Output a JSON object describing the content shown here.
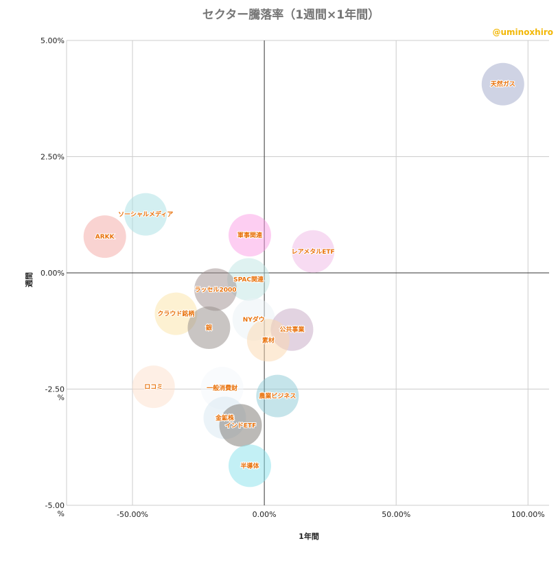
{
  "chart_data": {
    "type": "scatter",
    "title": "セクター騰落率（1週間×1年間）",
    "credit": "@uminoxhiro",
    "xlabel": "1年間",
    "ylabel": "週間",
    "xlim": [
      -0.75,
      1.08
    ],
    "ylim": [
      -0.05,
      0.05
    ],
    "x_ticks": [
      {
        "value": -0.5,
        "label": "-50.00%"
      },
      {
        "value": 0,
        "label": "0.00%"
      },
      {
        "value": 0.5,
        "label": "50.00%"
      },
      {
        "value": 1.0,
        "label": "100.00%"
      }
    ],
    "y_ticks": [
      {
        "value": 0.05,
        "label": "5.00%"
      },
      {
        "value": 0.025,
        "label": "2.50%"
      },
      {
        "value": 0,
        "label": "0.00%"
      },
      {
        "value": -0.025,
        "label": "-2.50 %"
      },
      {
        "value": -0.05,
        "label": "-5.00 %"
      }
    ],
    "grid": true,
    "points": [
      {
        "name": "天然ガス",
        "x": 0.905,
        "y": 0.0406,
        "color": "#9fa8c9",
        "opacity": 0.5
      },
      {
        "name": "ソーシャルメディア",
        "x": -0.45,
        "y": 0.0126,
        "color": "#a7dfe3",
        "opacity": 0.5
      },
      {
        "name": "ARKK",
        "x": -0.605,
        "y": 0.0078,
        "color": "#f4a8a4",
        "opacity": 0.5
      },
      {
        "name": "軍事関連",
        "x": -0.055,
        "y": 0.0081,
        "color": "#fb9ee6",
        "opacity": 0.5
      },
      {
        "name": "レアメタルETF",
        "x": 0.185,
        "y": 0.0046,
        "color": "#f0b7e5",
        "opacity": 0.5
      },
      {
        "name": "SPAC関連",
        "x": -0.06,
        "y": -0.0014,
        "color": "#bfe6e4",
        "opacity": 0.5
      },
      {
        "name": "ラッセル2000",
        "x": -0.185,
        "y": -0.0036,
        "color": "#9e8e8d",
        "opacity": 0.5
      },
      {
        "name": "クラウド銘柄",
        "x": -0.335,
        "y": -0.0088,
        "color": "#fbe3a6",
        "opacity": 0.5
      },
      {
        "name": "銀",
        "x": -0.21,
        "y": -0.0118,
        "color": "#938c87",
        "opacity": 0.5
      },
      {
        "name": "NYダウ",
        "x": -0.04,
        "y": -0.01,
        "color": "#eaf1f6",
        "opacity": 0.5
      },
      {
        "name": "公共事業",
        "x": 0.105,
        "y": -0.0122,
        "color": "#c6a8c4",
        "opacity": 0.5
      },
      {
        "name": "素材",
        "x": 0.015,
        "y": -0.0145,
        "color": "#fbd8ad",
        "opacity": 0.5
      },
      {
        "name": "ロコミ",
        "x": -0.42,
        "y": -0.0245,
        "color": "#fde0cc",
        "opacity": 0.5
      },
      {
        "name": "一般消費財",
        "x": -0.16,
        "y": -0.0248,
        "color": "#f4f7fb",
        "opacity": 0.5
      },
      {
        "name": "農業ビジネス",
        "x": 0.05,
        "y": -0.0265,
        "color": "#8ccad5",
        "opacity": 0.5
      },
      {
        "name": "金鉱株",
        "x": -0.15,
        "y": -0.0312,
        "color": "#d7e7f1",
        "opacity": 0.5
      },
      {
        "name": "インドETF",
        "x": -0.09,
        "y": -0.0328,
        "color": "#7a7570",
        "opacity": 0.5
      },
      {
        "name": "半導体",
        "x": -0.055,
        "y": -0.0415,
        "color": "#88e2ec",
        "opacity": 0.5
      }
    ]
  }
}
